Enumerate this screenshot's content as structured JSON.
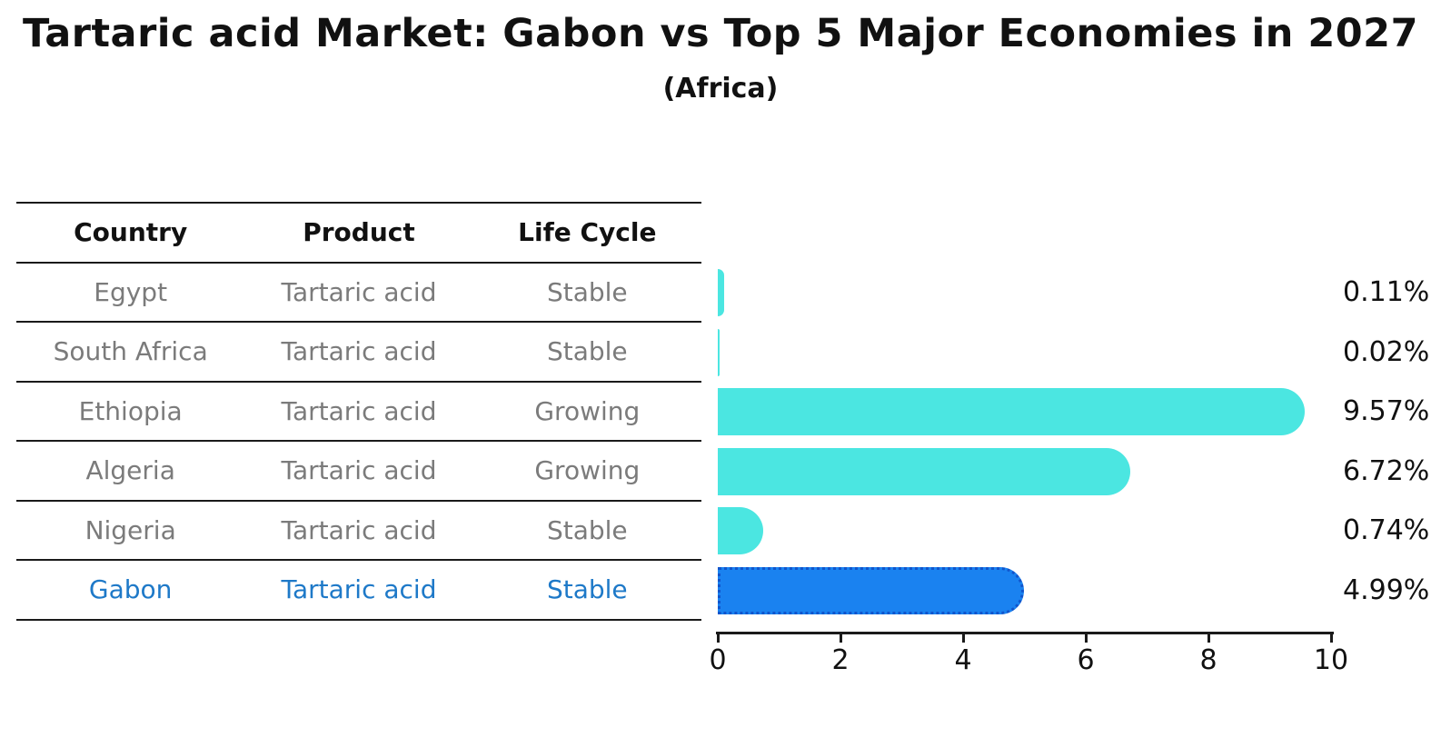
{
  "title": "Tartaric acid Market: Gabon vs Top 5 Major Economies in 2027",
  "subtitle": "(Africa)",
  "table": {
    "headers": [
      "Country",
      "Product",
      "Life Cycle"
    ],
    "rows": [
      {
        "country": "Egypt",
        "product": "Tartaric acid",
        "life_cycle": "Stable",
        "highlight": false
      },
      {
        "country": "South Africa",
        "product": "Tartaric acid",
        "life_cycle": "Stable",
        "highlight": false
      },
      {
        "country": "Ethiopia",
        "product": "Tartaric acid",
        "life_cycle": "Growing",
        "highlight": false
      },
      {
        "country": "Algeria",
        "product": "Tartaric acid",
        "life_cycle": "Growing",
        "highlight": false
      },
      {
        "country": "Nigeria",
        "product": "Tartaric acid",
        "life_cycle": "Stable",
        "highlight": false
      },
      {
        "country": "Gabon",
        "product": "Tartaric acid",
        "life_cycle": "Stable",
        "highlight": true
      }
    ]
  },
  "chart_data": {
    "type": "bar",
    "orientation": "horizontal",
    "title": "Tartaric acid Market: Gabon vs Top 5 Major Economies in 2027 (Africa)",
    "categories": [
      "Egypt",
      "South Africa",
      "Ethiopia",
      "Algeria",
      "Nigeria",
      "Gabon"
    ],
    "values": [
      0.11,
      0.02,
      9.57,
      6.72,
      0.74,
      4.99
    ],
    "value_labels": [
      "0.11%",
      "0.02%",
      "9.57%",
      "6.72%",
      "0.74%",
      "4.99%"
    ],
    "x_ticks": [
      0,
      2,
      4,
      6,
      8,
      10
    ],
    "xlim": [
      0,
      10
    ],
    "grid": false,
    "legend": "none",
    "bar_color": "#4be6e1",
    "highlight_index": 5,
    "highlight_bar_color": "#1a82f0",
    "highlight_border_color": "#1155cc",
    "highlight_text_color": "#1e79c8"
  }
}
